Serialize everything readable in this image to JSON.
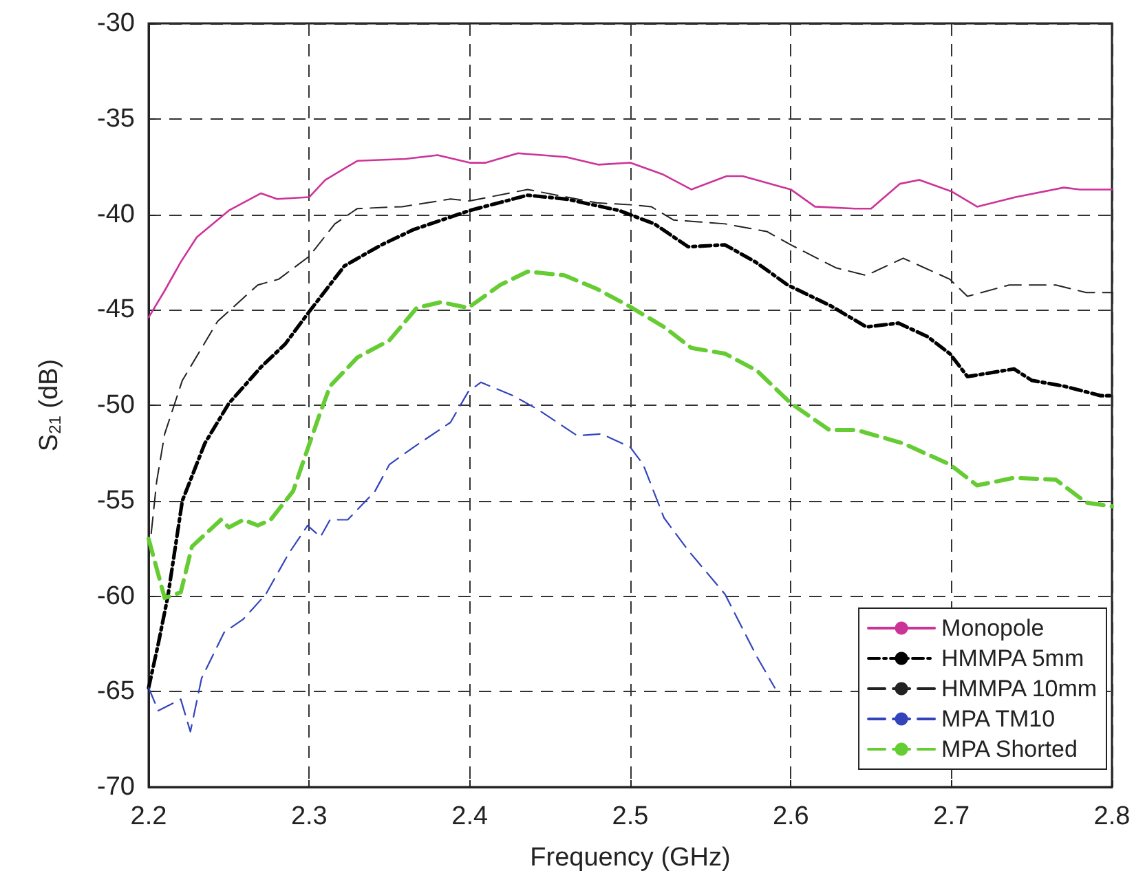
{
  "chart_data": {
    "type": "line",
    "xlabel": "Frequency (GHz)",
    "ylabel": "S$_{21}$ (dB)",
    "xlim": [
      2.2,
      2.8
    ],
    "xticks": [
      2.2,
      2.3,
      2.4,
      2.5,
      2.6,
      2.7,
      2.8
    ],
    "ylim": [
      -70,
      -30
    ],
    "yticks": [
      -70,
      -65,
      -60,
      -55,
      -50,
      -45,
      -40,
      -35,
      -30
    ],
    "grid": true,
    "legend": "bottom right",
    "marker": "none",
    "series": [
      {
        "name": "Monopole",
        "color": "#cc3399",
        "line_style": "solid",
        "x": [
          2.2,
          2.21,
          2.22,
          2.23,
          2.25,
          2.27,
          2.28,
          2.3,
          2.31,
          2.33,
          2.36,
          2.38,
          2.4,
          2.41,
          2.43,
          2.46,
          2.48,
          2.5,
          2.52,
          2.538,
          2.56,
          2.57,
          2.6,
          2.615,
          2.64,
          2.65,
          2.668,
          2.68,
          2.7,
          2.716,
          2.74,
          2.77,
          2.78,
          2.8
        ],
        "values": [
          -45.4,
          -44,
          -42.5,
          -41.2,
          -39.8,
          -38.9,
          -39.2,
          -39.1,
          -38.2,
          -37.2,
          -37.1,
          -36.9,
          -37.3,
          -37.3,
          -36.8,
          -37.0,
          -37.4,
          -37.3,
          -37.9,
          -38.7,
          -38.0,
          -38.0,
          -38.7,
          -39.6,
          -39.7,
          -39.7,
          -38.4,
          -38.2,
          -38.8,
          -39.6,
          -39.1,
          -38.6,
          -38.7,
          -38.7
        ]
      },
      {
        "name": "HMMPA 5mm",
        "color": "#000000",
        "line_style": "dashdot",
        "x": [
          2.2,
          2.206,
          2.212,
          2.221,
          2.235,
          2.25,
          2.27,
          2.285,
          2.3,
          2.322,
          2.345,
          2.365,
          2.4,
          2.436,
          2.46,
          2.493,
          2.515,
          2.536,
          2.559,
          2.578,
          2.598,
          2.625,
          2.647,
          2.667,
          2.685,
          2.699,
          2.71,
          2.739,
          2.75,
          2.77,
          2.793,
          2.8
        ],
        "values": [
          -64.8,
          -62.5,
          -60,
          -55,
          -52,
          -49.9,
          -48,
          -46.8,
          -45.1,
          -42.7,
          -41.6,
          -40.8,
          -39.8,
          -39.0,
          -39.2,
          -39.8,
          -40.5,
          -41.7,
          -41.6,
          -42.5,
          -43.7,
          -44.8,
          -45.9,
          -45.7,
          -46.4,
          -47.3,
          -48.5,
          -48.1,
          -48.7,
          -49.0,
          -49.5,
          -49.5
        ]
      },
      {
        "name": "HMMPA 10mm",
        "color": "#222222",
        "line_style": "dashed",
        "x": [
          2.2,
          2.205,
          2.21,
          2.221,
          2.243,
          2.268,
          2.281,
          2.3,
          2.316,
          2.33,
          2.358,
          2.388,
          2.4,
          2.436,
          2.479,
          2.5,
          2.513,
          2.527,
          2.559,
          2.585,
          2.6,
          2.628,
          2.647,
          2.67,
          2.699,
          2.71,
          2.736,
          2.765,
          2.784,
          2.8
        ],
        "values": [
          -58,
          -54,
          -51.5,
          -48.7,
          -45.6,
          -43.7,
          -43.4,
          -42.2,
          -40.5,
          -39.7,
          -39.6,
          -39.2,
          -39.3,
          -38.7,
          -39.4,
          -39.5,
          -39.6,
          -40.3,
          -40.5,
          -40.9,
          -41.6,
          -42.8,
          -43.2,
          -42.3,
          -43.4,
          -44.3,
          -43.7,
          -43.7,
          -44.1,
          -44.1
        ]
      },
      {
        "name": "MPA TM10",
        "color": "#3344bb",
        "line_style": "dashed",
        "x": [
          2.2,
          2.206,
          2.22,
          2.226,
          2.233,
          2.247,
          2.259,
          2.273,
          2.287,
          2.299,
          2.307,
          2.313,
          2.324,
          2.341,
          2.35,
          2.365,
          2.388,
          2.399,
          2.407,
          2.427,
          2.442,
          2.467,
          2.482,
          2.5,
          2.508,
          2.521,
          2.536,
          2.559,
          2.579,
          2.59
        ],
        "values": [
          -64.8,
          -66,
          -65.4,
          -67.1,
          -64.3,
          -61.9,
          -61.2,
          -59.9,
          -57.8,
          -56.3,
          -56.9,
          -56,
          -56,
          -54.5,
          -53.1,
          -52.2,
          -50.9,
          -49.3,
          -48.8,
          -49.5,
          -50.2,
          -51.6,
          -51.5,
          -52.2,
          -53.1,
          -55.9,
          -57.6,
          -59.9,
          -63.2,
          -64.8
        ]
      },
      {
        "name": "MPA Shorted",
        "color": "#66cc33",
        "line_style": "dashed",
        "x": [
          2.2,
          2.21,
          2.22,
          2.227,
          2.245,
          2.25,
          2.259,
          2.268,
          2.276,
          2.29,
          2.299,
          2.306,
          2.313,
          2.33,
          2.35,
          2.367,
          2.382,
          2.399,
          2.419,
          2.436,
          2.459,
          2.479,
          2.499,
          2.521,
          2.538,
          2.559,
          2.579,
          2.6,
          2.624,
          2.641,
          2.67,
          2.699,
          2.716,
          2.739,
          2.765,
          2.784,
          2.8
        ],
        "values": [
          -57,
          -60.1,
          -59.8,
          -57.4,
          -56,
          -56.4,
          -56,
          -56.3,
          -56,
          -54.5,
          -52.3,
          -50.6,
          -49,
          -47.5,
          -46.6,
          -44.9,
          -44.6,
          -44.9,
          -43.7,
          -43,
          -43.2,
          -43.9,
          -44.8,
          -45.9,
          -47,
          -47.3,
          -48.2,
          -49.9,
          -51.3,
          -51.3,
          -52,
          -53.1,
          -54.2,
          -53.8,
          -53.9,
          -55.1,
          -55.3
        ]
      }
    ]
  }
}
